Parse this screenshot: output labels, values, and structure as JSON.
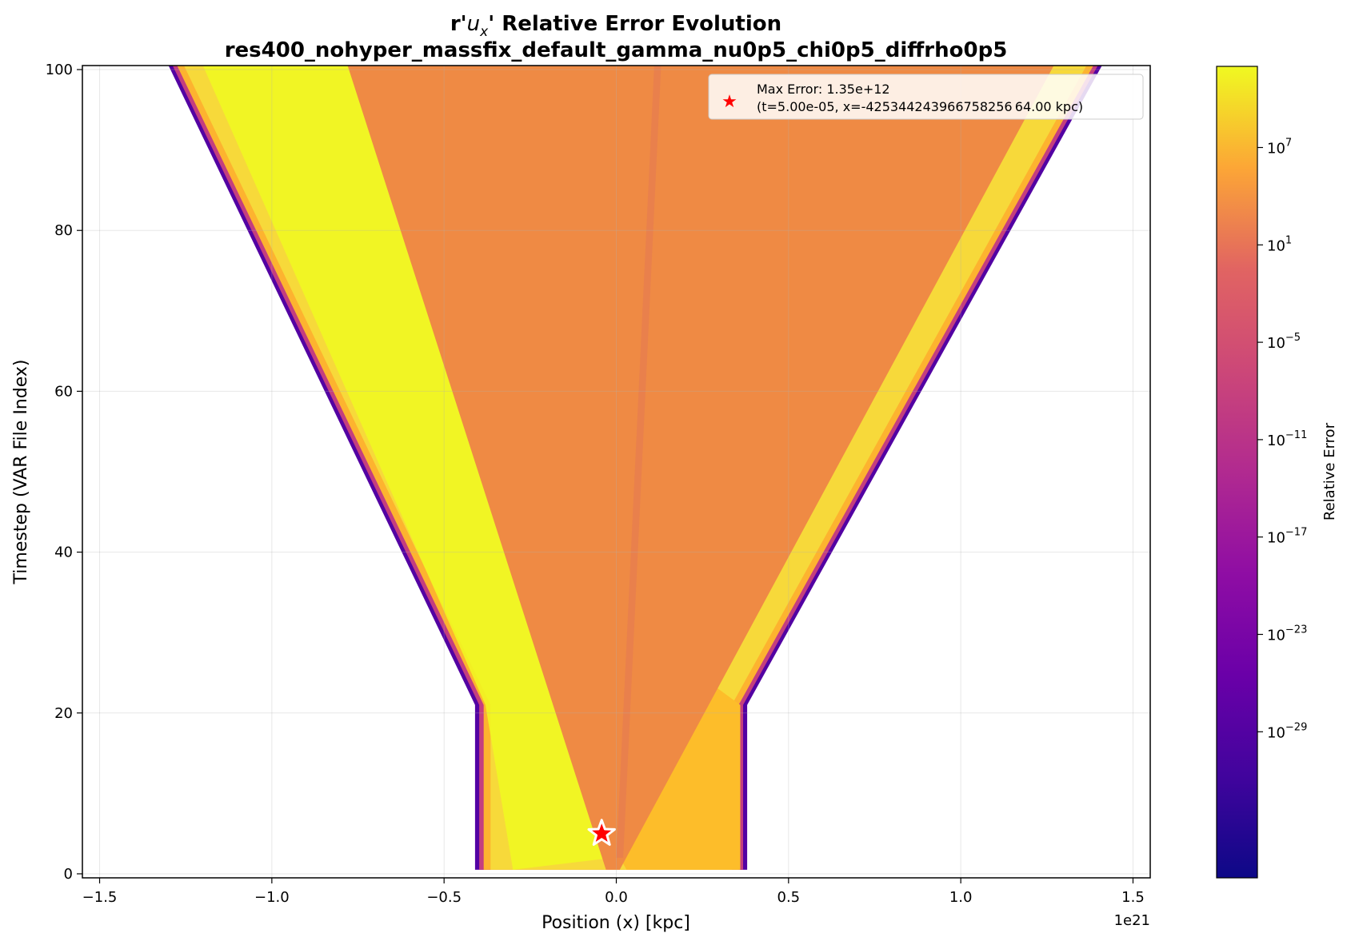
{
  "chart_data": {
    "type": "heatmap",
    "title_line1_prefix": "r'",
    "title_var_u": "u",
    "title_var_sub": "x",
    "title_line1_suffix": "' Relative Error Evolution",
    "title_line2": "res400_nohyper_massfix_default_gamma_nu0p5_chi0p5_diffrho0p5",
    "xlabel": "Position (x) [kpc]",
    "ylabel": "Timestep (VAR File Index)",
    "x_offset_label": "1e21",
    "xlim": [
      -1.55,
      1.55
    ],
    "ylim": [
      -0.5,
      100.5
    ],
    "xticks": [
      -1.5,
      -1.0,
      -0.5,
      0.0,
      0.5,
      1.0,
      1.5
    ],
    "xtick_labels": [
      "−1.5",
      "−1.0",
      "−0.5",
      "0.0",
      "0.5",
      "1.0",
      "1.5"
    ],
    "yticks": [
      0,
      20,
      40,
      60,
      80,
      100
    ],
    "ytick_labels": [
      "0",
      "20",
      "40",
      "60",
      "80",
      "100"
    ],
    "grid": true,
    "colormap": "plasma",
    "colorbar": {
      "label": "Relative Error",
      "scale": "log",
      "range_exp": [
        -38,
        12
      ],
      "ticks": [
        {
          "base": "10",
          "exp": "7",
          "value": 7
        },
        {
          "base": "10",
          "exp": "1",
          "value": 1
        },
        {
          "base": "10",
          "exp": "−5",
          "value": -5
        },
        {
          "base": "10",
          "exp": "−11",
          "value": -11
        },
        {
          "base": "10",
          "exp": "−17",
          "value": -17
        },
        {
          "base": "10",
          "exp": "−23",
          "value": -23
        },
        {
          "base": "10",
          "exp": "−29",
          "value": -29
        }
      ]
    },
    "regions": {
      "initial_left_edge": -0.41,
      "initial_right_edge": 0.38,
      "initial_until_step": 21,
      "outer_left_at_top": -1.3,
      "outer_right_at_top": 1.41,
      "inner_cone_left_at_top": -0.78,
      "inner_cone_right_at_top": 1.27,
      "apex_x": -0.01,
      "apex_step": 2
    },
    "max_marker": {
      "x": -0.0425,
      "y": 5,
      "color": "#ff0000"
    },
    "legend": {
      "placement": "top-right",
      "line1": "Max Error: 1.35e+12",
      "line2": "(t=5.00e-05, x=-425344243966758256 64.00 kpc)"
    }
  }
}
